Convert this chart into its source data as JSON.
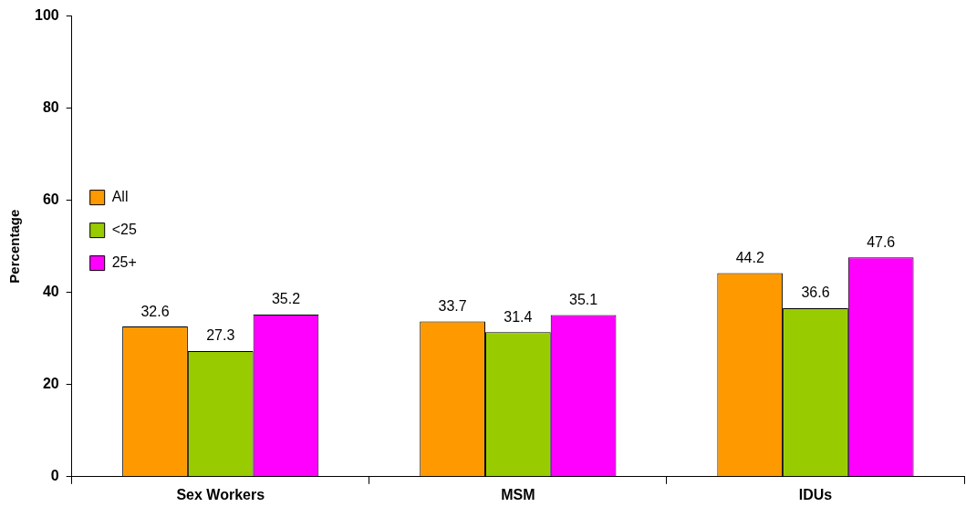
{
  "chart_data": {
    "type": "bar",
    "ylabel": "Percentage",
    "categories": [
      "Sex Workers",
      "MSM",
      "IDUs"
    ],
    "series": [
      {
        "name": "All",
        "color": "#ff9900",
        "values": [
          32.6,
          33.7,
          44.2
        ]
      },
      {
        "name": "<25",
        "color": "#99cc00",
        "values": [
          27.3,
          31.4,
          36.6
        ]
      },
      {
        "name": "25+",
        "color": "#ff00ff",
        "values": [
          35.2,
          35.1,
          47.6
        ]
      }
    ],
    "ylim": [
      0,
      100
    ],
    "yticks": [
      0,
      20,
      40,
      60,
      80,
      100
    ],
    "grid": false,
    "legend": "top",
    "data_labels": true
  }
}
